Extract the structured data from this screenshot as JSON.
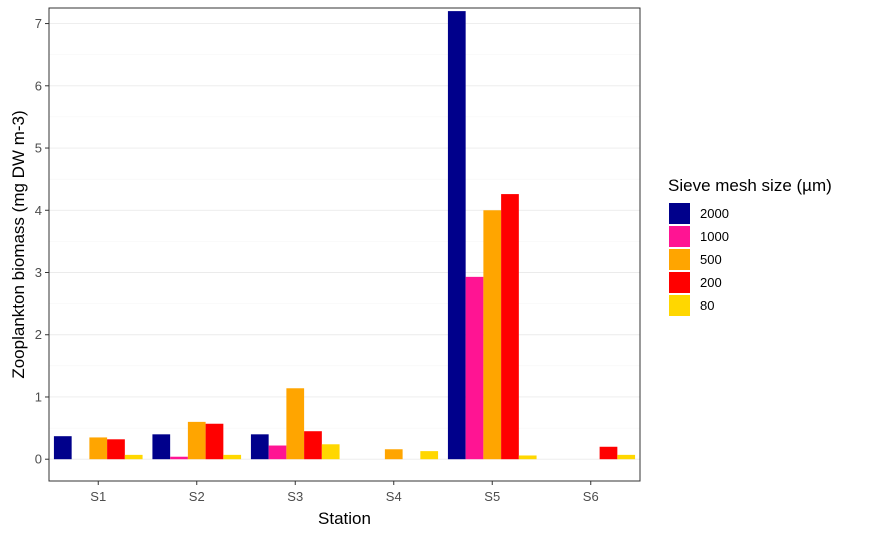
{
  "chart_data": {
    "type": "bar",
    "xlabel": "Station",
    "ylabel": "Zooplankton biomass (mg DW m-3)",
    "categories": [
      "S1",
      "S2",
      "S3",
      "S4",
      "S5",
      "S6"
    ],
    "ylim": [
      -0.35,
      7.25
    ],
    "yticks": [
      0,
      1,
      2,
      3,
      4,
      5,
      6,
      7
    ],
    "grid": true,
    "legend_position": "right",
    "legend_title": "Sieve mesh size (µm)",
    "series": [
      {
        "name": "2000",
        "color": "#00008B",
        "values": [
          0.37,
          0.4,
          0.4,
          0,
          7.2,
          0
        ]
      },
      {
        "name": "1000",
        "color": "#FF1493",
        "values": [
          0,
          0.04,
          0.22,
          0,
          2.93,
          0
        ]
      },
      {
        "name": "500",
        "color": "#FFA500",
        "values": [
          0.35,
          0.6,
          1.14,
          0.16,
          4.0,
          0
        ]
      },
      {
        "name": "200",
        "color": "#FF0000",
        "values": [
          0.32,
          0.57,
          0.45,
          0,
          4.26,
          0.2
        ]
      },
      {
        "name": "80",
        "color": "#FFD700",
        "values": [
          0.07,
          0.07,
          0.24,
          0.13,
          0.06,
          0.07
        ]
      }
    ]
  }
}
